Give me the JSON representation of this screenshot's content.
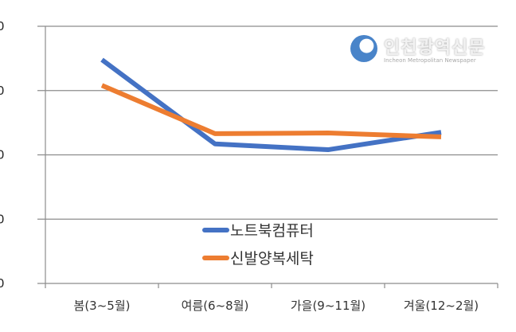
{
  "chart_data": {
    "type": "line",
    "title": "",
    "xlabel": "",
    "ylabel": "",
    "categories": [
      "봄(3~5월)",
      "여름(6~8월)",
      "가을(9~11월)",
      "겨울(12~2월)"
    ],
    "series": [
      {
        "name": "노트북컴퓨터",
        "color": "#4472C4",
        "values": [
          348,
          217,
          208,
          235
        ]
      },
      {
        "name": "신발양복세탁",
        "color": "#ED7D31",
        "values": [
          308,
          233,
          234,
          228
        ]
      }
    ],
    "ylim": [
      0,
      400
    ],
    "yticks": [
      "0",
      "0",
      "0",
      "0",
      "0"
    ],
    "grid": true,
    "legend": "center-bottom-inside"
  },
  "watermark": {
    "text": "인천광역신문",
    "sub": "Incheon Metropolitan Newspaper"
  }
}
